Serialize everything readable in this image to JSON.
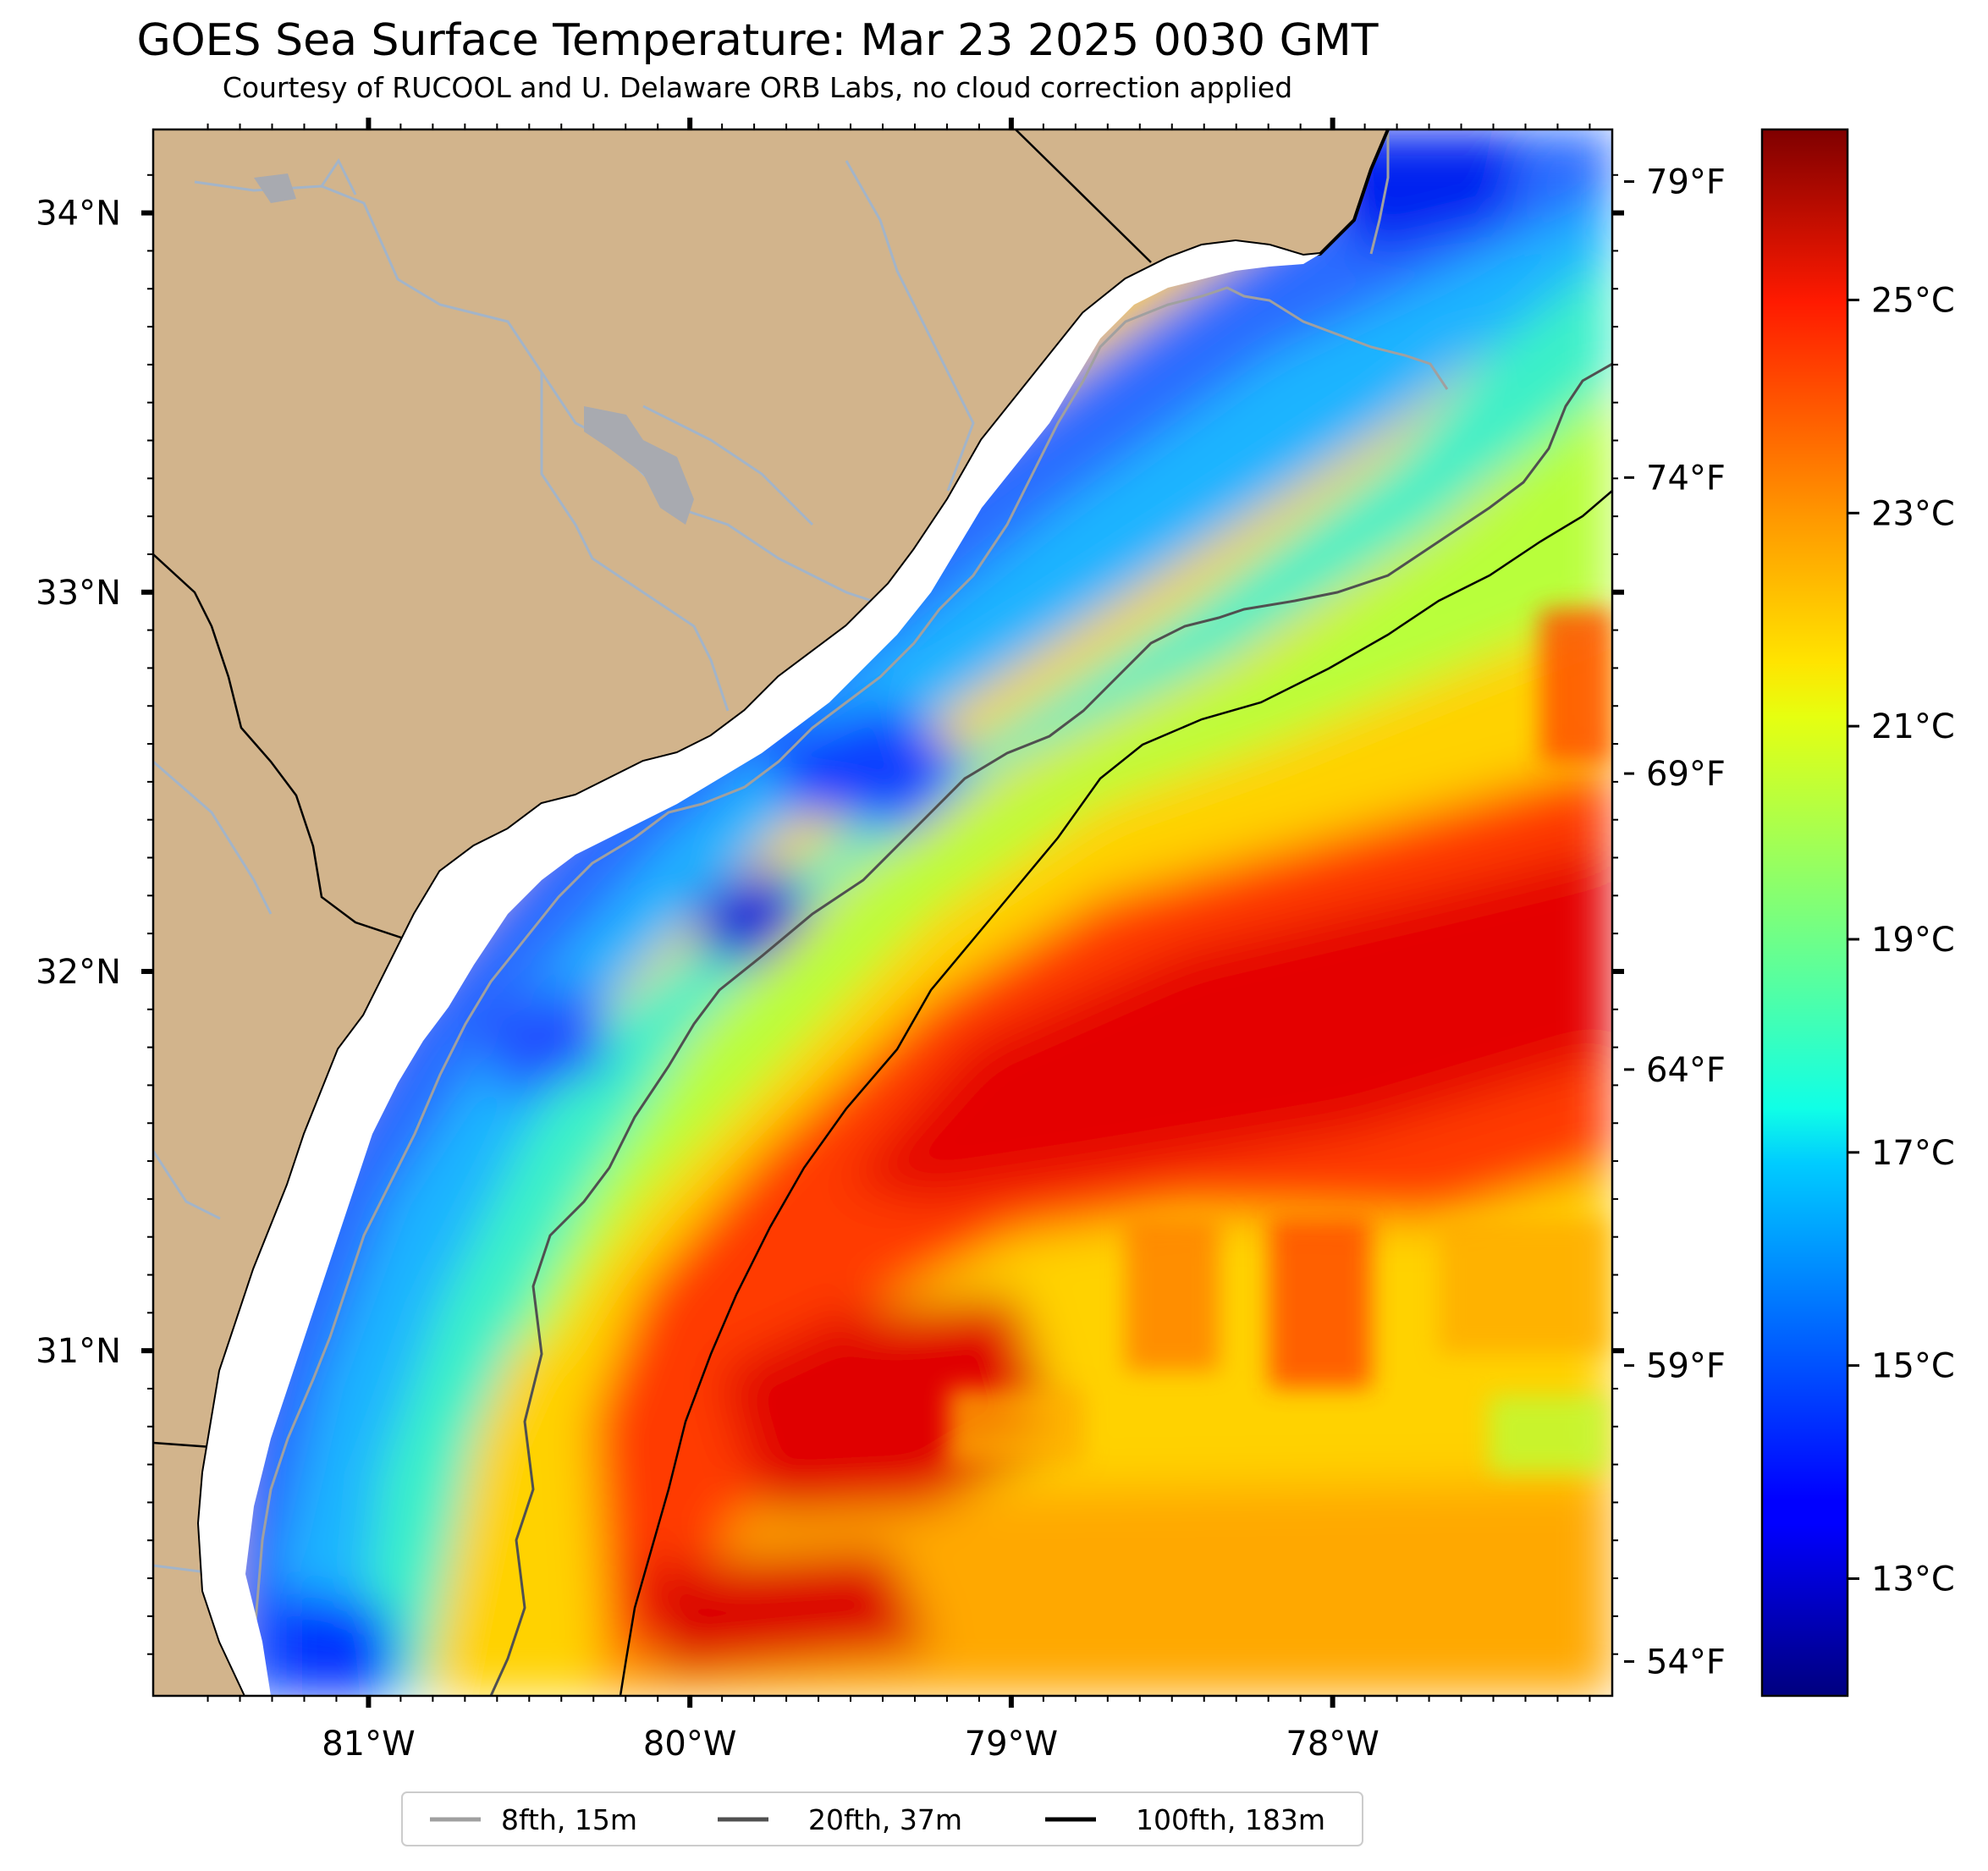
{
  "title": "GOES Sea Surface Temperature: Mar 23 2025 0030 GMT",
  "subtitle": "Courtesy of RUCOOL and U. Delaware ORB Labs, no cloud correction applied",
  "colors": {
    "land": "#d2b48c",
    "river": "#a3b4c8",
    "coast": "#000000",
    "iso_8fth": "#a0a0a0",
    "iso_20fth": "#505050",
    "iso_100fth": "#000000"
  },
  "axes": {
    "lon_range": [
      -81.67,
      -77.13
    ],
    "lat_range": [
      30.09,
      34.22
    ],
    "lon_ticks": [
      {
        "value": -81,
        "label": "81°W"
      },
      {
        "value": -80,
        "label": "80°W"
      },
      {
        "value": -79,
        "label": "79°W"
      },
      {
        "value": -78,
        "label": "78°W"
      }
    ],
    "lat_ticks": [
      {
        "value": 34,
        "label": "34°N"
      },
      {
        "value": 33,
        "label": "33°N"
      },
      {
        "value": 32,
        "label": "32°N"
      },
      {
        "value": 31,
        "label": "31°N"
      }
    ],
    "f_ticks": [
      {
        "value": 79,
        "label": "79°F"
      },
      {
        "value": 74,
        "label": "74°F"
      },
      {
        "value": 69,
        "label": "69°F"
      },
      {
        "value": 64,
        "label": "64°F"
      },
      {
        "value": 59,
        "label": "59°F"
      },
      {
        "value": 54,
        "label": "54°F"
      }
    ]
  },
  "colorbar": {
    "range_c": [
      11.9,
      26.6
    ],
    "ticks": [
      {
        "value": 25,
        "label": "25°C"
      },
      {
        "value": 23,
        "label": "23°C"
      },
      {
        "value": 21,
        "label": "21°C"
      },
      {
        "value": 19,
        "label": "19°C"
      },
      {
        "value": 17,
        "label": "17°C"
      },
      {
        "value": 15,
        "label": "15°C"
      },
      {
        "value": 13,
        "label": "13°C"
      }
    ],
    "colormap": "jet"
  },
  "legend": [
    {
      "label": "8fth, 15m",
      "color": "#a0a0a0"
    },
    {
      "label": "20fth, 37m",
      "color": "#505050"
    },
    {
      "label": "100fth, 183m",
      "color": "#000000"
    }
  ],
  "sst_field": {
    "units": "°C",
    "regions": [
      {
        "name": "nearshore cold band",
        "value": 14.5
      },
      {
        "name": "inner shelf",
        "value": 16.5
      },
      {
        "name": "mid shelf",
        "value": 18.5
      },
      {
        "name": "outer shelf",
        "value": 21.0
      },
      {
        "name": "gulf stream edge",
        "value": 23.5
      },
      {
        "name": "gulf stream core",
        "value": 25.5
      },
      {
        "name": "offshore south",
        "value": 23.0
      }
    ]
  }
}
